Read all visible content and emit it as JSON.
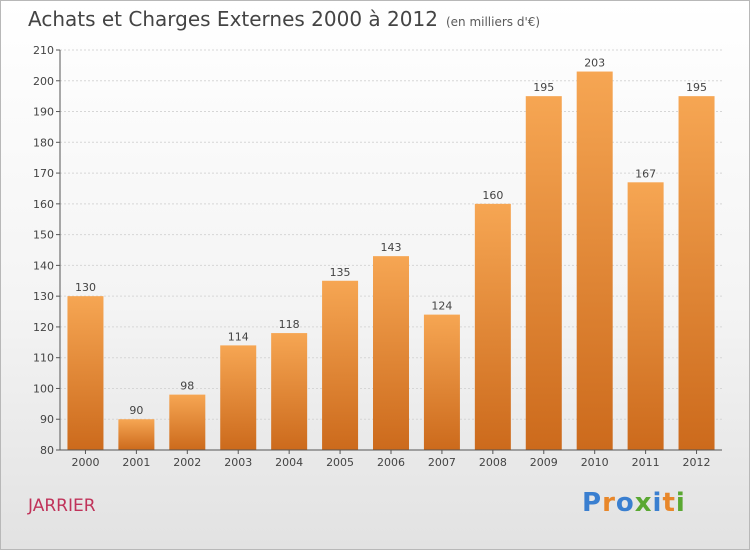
{
  "title": "Achats et Charges Externes 2000 à 2012",
  "subtitle": "(en milliers d'€)",
  "town": "JARRIER",
  "logo_text": "Proxiti",
  "colors": {
    "bar_light": "#f6a653",
    "bar_dark": "#cc6a1c",
    "town": "#c0335a",
    "logo": [
      "#3a7fd0",
      "#e8872a",
      "#3a7fd0",
      "#5aa832",
      "#3a7fd0",
      "#e8872a",
      "#5aa832"
    ]
  },
  "chart_data": {
    "type": "bar",
    "categories": [
      "2000",
      "2001",
      "2002",
      "2003",
      "2004",
      "2005",
      "2006",
      "2007",
      "2008",
      "2009",
      "2010",
      "2011",
      "2012"
    ],
    "values": [
      130,
      90,
      98,
      114,
      118,
      135,
      143,
      124,
      160,
      195,
      203,
      167,
      195
    ],
    "ylim": [
      80,
      210
    ],
    "yticks": [
      80,
      90,
      100,
      110,
      120,
      130,
      140,
      150,
      160,
      170,
      180,
      190,
      200,
      210
    ],
    "grid": true,
    "data_labels": true
  }
}
